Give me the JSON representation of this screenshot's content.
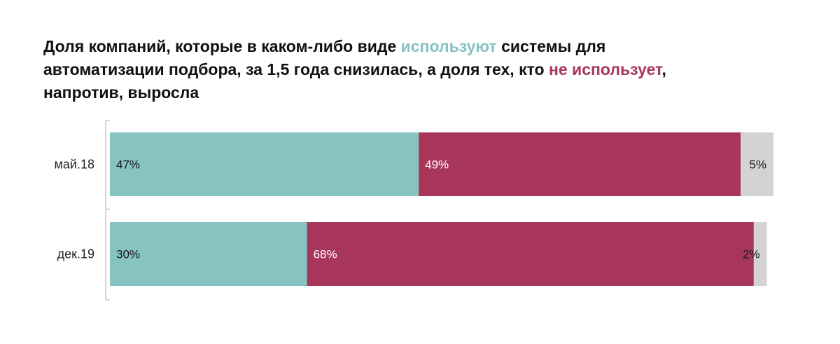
{
  "title": {
    "part1": "Доля компаний, которые в каком-либо виде ",
    "highlight_use": "используют",
    "part2": " системы для автоматизации подбора, за 1,5 года снизилась, а доля тех, кто ",
    "highlight_nouse": "не использует",
    "part3": ", напротив, выросла"
  },
  "colors": {
    "uses": "#86c3c1",
    "not_uses": "#a7365a",
    "other": "#d3d3d3",
    "axis": "#c8c8c8"
  },
  "chart_data": {
    "type": "bar",
    "orientation": "horizontal",
    "stacked": true,
    "categories": [
      "май.18",
      "дек.19"
    ],
    "series": [
      {
        "values": [
          47,
          30
        ],
        "labels": [
          "47%",
          "30%"
        ],
        "color": "#86c3c1",
        "label_color": "#1a1a1a"
      },
      {
        "values": [
          49,
          68
        ],
        "labels": [
          "49%",
          "68%"
        ],
        "color": "#a7365a",
        "label_color": "#ffffff"
      },
      {
        "values": [
          5,
          2
        ],
        "labels": [
          "5%",
          "2%"
        ],
        "color": "#d3d3d3",
        "label_color": "#1a1a1a"
      }
    ],
    "xlim": [
      0,
      101
    ],
    "grid": false,
    "legend": "none"
  }
}
